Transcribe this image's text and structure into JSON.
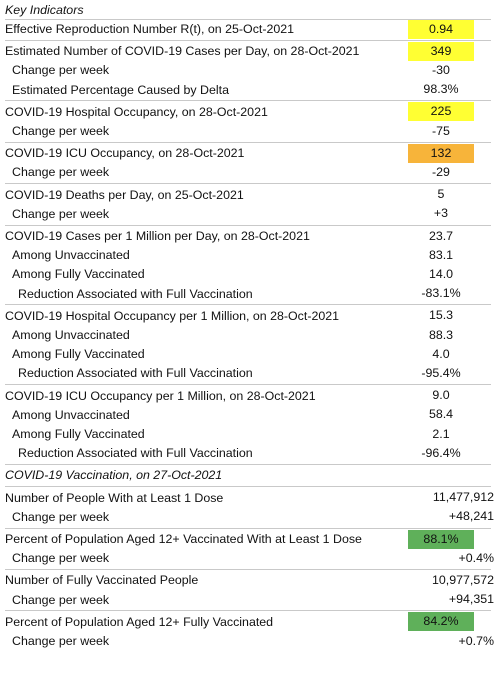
{
  "title": "Key Indicators",
  "colors": {
    "yellow": "#ffff33",
    "orange": "#f7b43a",
    "green": "#5fb05a"
  },
  "sections": [
    {
      "rows": [
        {
          "label": "Effective Reproduction Number R(t), on 25-Oct-2021",
          "value": "0.94",
          "level": 0,
          "highlight": "yellow"
        }
      ]
    },
    {
      "rows": [
        {
          "label": "Estimated Number of COVID-19 Cases per Day, on 28-Oct-2021",
          "value": "349",
          "level": 0,
          "highlight": "yellow"
        },
        {
          "label": "Change per week",
          "value": "-30",
          "level": 1
        },
        {
          "label": "Estimated Percentage Caused by Delta",
          "value": "98.3%",
          "level": 1
        }
      ]
    },
    {
      "rows": [
        {
          "label": "COVID-19 Hospital Occupancy, on 28-Oct-2021",
          "value": "225",
          "level": 0,
          "highlight": "yellow"
        },
        {
          "label": "Change per week",
          "value": "-75",
          "level": 1
        }
      ]
    },
    {
      "rows": [
        {
          "label": "COVID-19 ICU Occupancy, on 28-Oct-2021",
          "value": "132",
          "level": 0,
          "highlight": "orange"
        },
        {
          "label": "Change per week",
          "value": "-29",
          "level": 1
        }
      ]
    },
    {
      "rows": [
        {
          "label": "COVID-19 Deaths per Day, on 25-Oct-2021",
          "value": "5",
          "level": 0
        },
        {
          "label": "Change per week",
          "value": "+3",
          "level": 1
        }
      ]
    },
    {
      "rows": [
        {
          "label": "COVID-19 Cases per 1 Million per Day, on 28-Oct-2021",
          "value": "23.7",
          "level": 0
        },
        {
          "label": "Among Unvaccinated",
          "value": "83.1",
          "level": 1
        },
        {
          "label": "Among Fully Vaccinated",
          "value": "14.0",
          "level": 1
        },
        {
          "label": "Reduction Associated with Full Vaccination",
          "value": "-83.1%",
          "level": 2
        }
      ]
    },
    {
      "rows": [
        {
          "label": "COVID-19 Hospital Occupancy per 1 Million, on 28-Oct-2021",
          "value": "15.3",
          "level": 0
        },
        {
          "label": "Among Unvaccinated",
          "value": "88.3",
          "level": 1
        },
        {
          "label": "Among Fully Vaccinated",
          "value": "4.0",
          "level": 1
        },
        {
          "label": "Reduction Associated with Full Vaccination",
          "value": "-95.4%",
          "level": 2
        }
      ]
    },
    {
      "rows": [
        {
          "label": "COVID-19 ICU Occupancy per 1 Million, on 28-Oct-2021",
          "value": "9.0",
          "level": 0
        },
        {
          "label": "Among Unvaccinated",
          "value": "58.4",
          "level": 1
        },
        {
          "label": "Among Fully Vaccinated",
          "value": "2.1",
          "level": 1
        },
        {
          "label": "Reduction Associated with Full Vaccination",
          "value": "-96.4%",
          "level": 2
        }
      ]
    }
  ],
  "vaccination": {
    "title": "COVID-19 Vaccination, on 27-Oct-2021",
    "rows": [
      {
        "label": "Number of People With at Least 1 Dose",
        "value": "11,477,912",
        "level": 0
      },
      {
        "label": "Change per week",
        "value": "+48,241",
        "level": 1
      },
      {
        "label": "Percent of Population Aged 12+ Vaccinated With at Least 1 Dose",
        "value": "88.1%",
        "level": 0,
        "highlight": "green"
      },
      {
        "label": "Change per week",
        "value": "+0.4%",
        "level": 1
      },
      {
        "label": "Number of Fully Vaccinated People",
        "value": "10,977,572",
        "level": 0
      },
      {
        "label": "Change per week",
        "value": "+94,351",
        "level": 1
      },
      {
        "label": "Percent of Population Aged 12+ Fully Vaccinated",
        "value": "84.2%",
        "level": 0,
        "highlight": "green"
      },
      {
        "label": "Change per week",
        "value": "+0.7%",
        "level": 1
      }
    ]
  }
}
